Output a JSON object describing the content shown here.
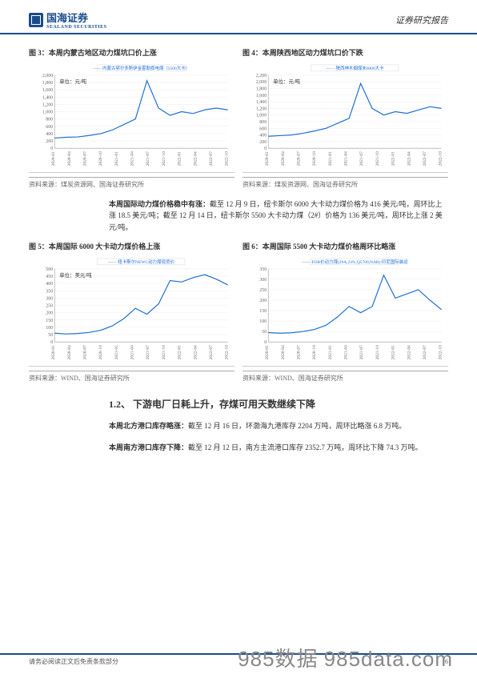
{
  "header": {
    "brand_cn": "国海证券",
    "brand_en": "SEALAND SECURITIES",
    "doc_type": "证券研究报告"
  },
  "figures": [
    {
      "title": "图 3：本周内蒙古地区动力煤坑口价上涨",
      "legend": "内蒙古鄂尔多斯伊金霍勒旗电煤（5500大卡）",
      "unit": "单位：元/吨",
      "source": "资料来源：煤炭资源网、国海证券研究所",
      "ylim": [
        0,
        2000
      ],
      "ytick_step": 200,
      "xticks": [
        "2020-01",
        "2020-04",
        "2020-07",
        "2020-10",
        "2021-01",
        "2021-04",
        "2021-07",
        "2021-10",
        "2022-01",
        "2022-04",
        "2022-07",
        "2022-10"
      ],
      "series": [
        280,
        300,
        310,
        350,
        400,
        500,
        650,
        800,
        1850,
        1100,
        900,
        1000,
        950,
        1050,
        1100,
        1050
      ],
      "line_color": "#1f6fd4",
      "bg_color": "#ffffff",
      "grid_color": "#e8e8e8"
    },
    {
      "title": "图 4：本周陕西地区动力煤坑口价下跌",
      "legend": "陕西神木烟煤末6000大卡",
      "unit": "单位：元/吨",
      "source": "资料来源：煤炭资源网、国海证券研究所",
      "ylim": [
        0,
        2200
      ],
      "ytick_step": 200,
      "xticks": [
        "2020-01",
        "2020-04",
        "2020-07",
        "2020-10",
        "2021-01",
        "2021-04",
        "2021-07",
        "2021-10",
        "2022-01",
        "2022-04",
        "2022-07",
        "2022-10"
      ],
      "series": [
        360,
        380,
        400,
        450,
        520,
        600,
        750,
        900,
        1950,
        1200,
        1000,
        1100,
        1050,
        1150,
        1250,
        1200
      ],
      "line_color": "#1f6fd4",
      "bg_color": "#ffffff",
      "grid_color": "#e8e8e8"
    },
    {
      "title": "图 5：本周国际 6000 大卡动力煤价格上涨",
      "legend": "纽卡斯尔NEWC动力煤现货价",
      "unit": "单位：美元/吨",
      "source": "资料来源：WIND、国海证券研究所",
      "ylim": [
        0,
        500
      ],
      "ytick_step": 50,
      "xticks": [
        "2020-01",
        "2020-04",
        "2020-07",
        "2020-10",
        "2021-01",
        "2021-04",
        "2021-07",
        "2021-10",
        "2022-01",
        "2022-04",
        "2022-07",
        "2022-10"
      ],
      "series": [
        60,
        55,
        58,
        65,
        80,
        110,
        160,
        230,
        190,
        260,
        420,
        410,
        440,
        460,
        430,
        390
      ],
      "line_color": "#1f6fd4",
      "bg_color": "#ffffff",
      "grid_color": "#e8e8e8"
    },
    {
      "title": "图 6：本周国际 5500 大卡动力煤价格周环比略涨",
      "legend": "FOB价动力煤(2#A,23%,Q5700,NAR):印尼国际装运",
      "unit": "",
      "source": "资料来源：WIND、国海证券研究所",
      "ylim": [
        0,
        350
      ],
      "ytick_step": 50,
      "xticks": [
        "2020-01",
        "2020-04",
        "2020-07",
        "2020-10",
        "2021-01",
        "2021-04",
        "2021-07",
        "2021-10",
        "2022-01",
        "2022-04",
        "2022-07",
        "2022-10"
      ],
      "series": [
        45,
        42,
        44,
        50,
        60,
        80,
        120,
        170,
        140,
        170,
        320,
        210,
        230,
        250,
        200,
        155
      ],
      "line_color": "#1f6fd4",
      "bg_color": "#ffffff",
      "grid_color": "#e8e8e8"
    }
  ],
  "text": {
    "p1_bold": "本周国际动力煤价格稳中有涨：",
    "p1_body": "截至 12 月 9 日，纽卡斯尔 6000 大卡动力煤价格为 416 美元/吨，周环比上涨 18.5 美元/吨；截至 12 月 14 日，纽卡斯尔 5500 大卡动力煤（2#）价格为 136 美元/吨，周环比上涨 2 美元/吨。",
    "section": "1.2、 下游电厂日耗上升，存煤可用天数继续下降",
    "p2_bold": "本周北方港口库存略涨：",
    "p2_body": "截至 12 月 16 日，环渤海九港库存 2204 万吨，周环比略涨 6.8 万吨。",
    "p3_bold": "本周南方港口库存下降：",
    "p3_body": "截至 12 月 12 日，南方主流港口库存 2352.7 万吨，周环比下降 74.3 万吨。"
  },
  "footer": {
    "disclaimer": "请务必阅读正文后免责条款部分",
    "page": "6",
    "watermark": "985数据 985data.com"
  }
}
